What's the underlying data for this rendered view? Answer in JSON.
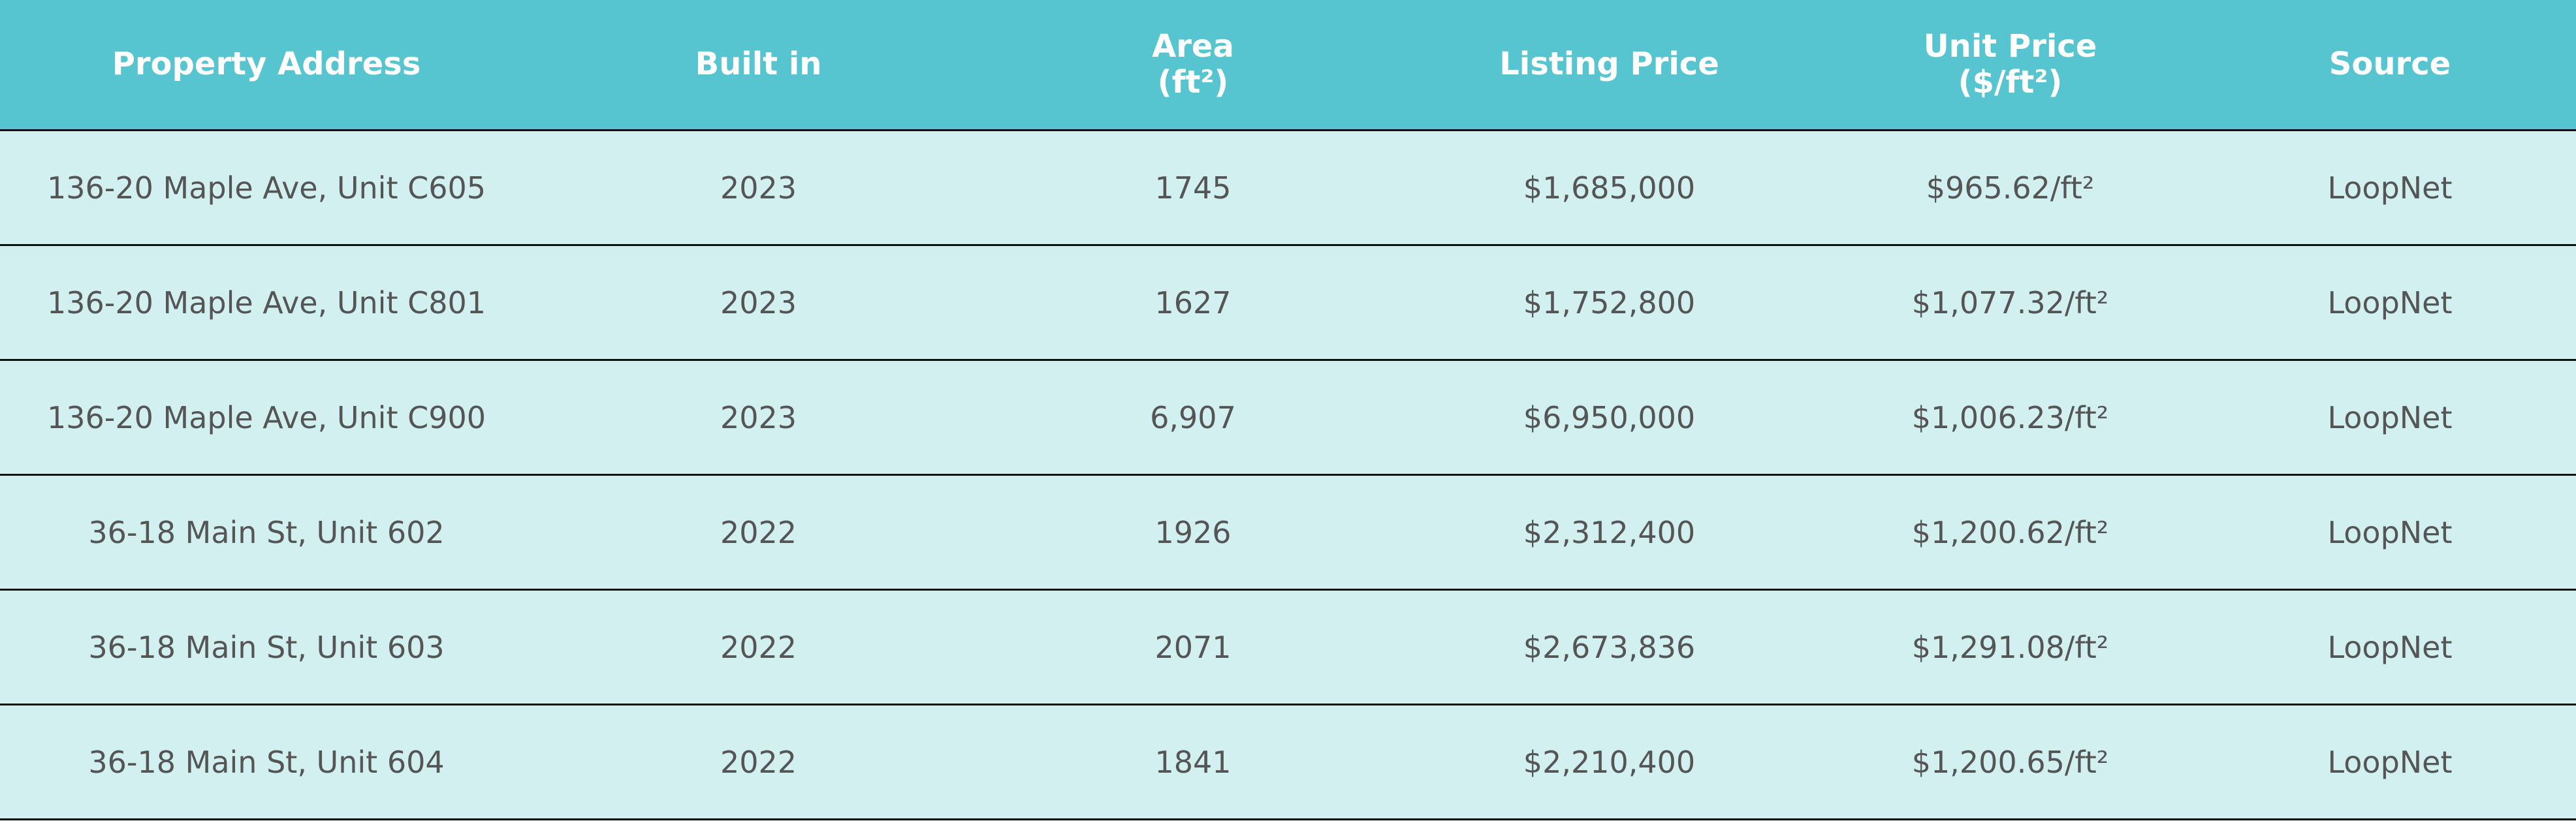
{
  "table": {
    "header": [
      "Property Address",
      "Built in",
      "Area\n(ft²)",
      "Listing Price",
      "Unit Price\n($/ft²)",
      "Source"
    ],
    "rows": [
      [
        "136-20 Maple Ave, Unit C605",
        "2023",
        "1745",
        "$1,685,000",
        "$965.62/ft²",
        "LoopNet"
      ],
      [
        "136-20 Maple Ave, Unit C801",
        "2023",
        "1627",
        "$1,752,800",
        "$1,077.32/ft²",
        "LoopNet"
      ],
      [
        "136-20 Maple Ave, Unit C900",
        "2023",
        "6,907",
        "$6,950,000",
        "$1,006.23/ft²",
        "LoopNet"
      ],
      [
        "36-18 Main St, Unit 602",
        "2022",
        "1926",
        "$2,312,400",
        "$1,200.62/ft²",
        "LoopNet"
      ],
      [
        "36-18 Main St, Unit 603",
        "2022",
        "2071",
        "$2,673,836",
        "$1,291.08/ft²",
        "LoopNet"
      ],
      [
        "36-18 Main St, Unit 604",
        "2022",
        "1841",
        "$2,210,400",
        "$1,200.65/ft²",
        "LoopNet"
      ]
    ]
  }
}
